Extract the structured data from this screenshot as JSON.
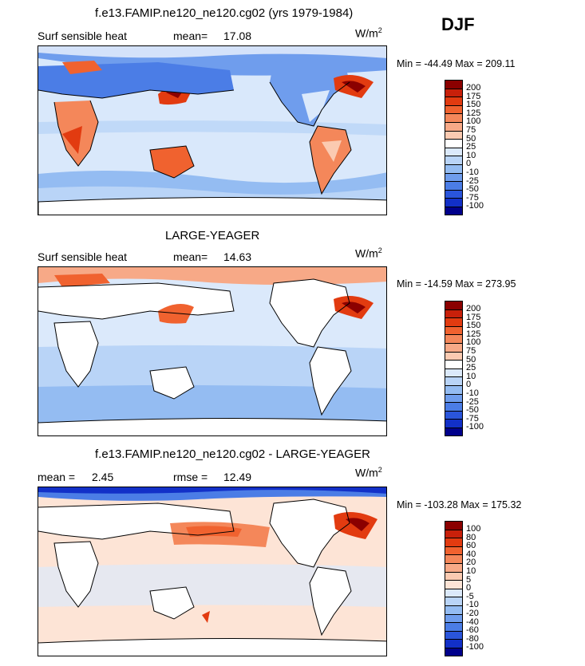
{
  "header": {
    "season": "DJF",
    "units_base": "W/m",
    "units_exp": "2"
  },
  "panels": [
    {
      "title": "f.e13.FAMIP.ne120_ne120.cg02 (yrs 1979-1984)",
      "left_label": "Surf sensible heat",
      "stat1": "mean=",
      "stat1_value": "17.08",
      "stat2": "",
      "stat2_value": "",
      "minmax": "Min = -44.49 Max = 209.11",
      "variant": "model"
    },
    {
      "title": "LARGE-YEAGER",
      "left_label": "Surf sensible heat",
      "stat1": "mean=",
      "stat1_value": "14.63",
      "stat2": "",
      "stat2_value": "",
      "minmax": "Min = -14.59 Max = 273.95",
      "variant": "obs"
    },
    {
      "title": "f.e13.FAMIP.ne120_ne120.cg02 - LARGE-YEAGER",
      "left_label": "mean =",
      "stat1": "2.45",
      "stat1_value": "",
      "stat2": "rmse =",
      "stat2_value": "12.49",
      "minmax": "Min = -103.28 Max = 175.32",
      "variant": "diff"
    }
  ],
  "colorbars": [
    {
      "labels": [
        "200",
        "175",
        "150",
        "125",
        "100",
        "75",
        "50",
        "25",
        "10",
        "0",
        "-10",
        "-25",
        "-50",
        "-75",
        "-100"
      ],
      "colors": [
        "#8b0000",
        "#c8200a",
        "#e23b10",
        "#f0622f",
        "#f4875a",
        "#f7a987",
        "#fbcab1",
        "#ffffff",
        "#dbe9fb",
        "#b9d4f7",
        "#94bcf2",
        "#6f9ded",
        "#4b7de6",
        "#2a55db",
        "#1230c8",
        "#00008b"
      ]
    },
    {
      "labels": [
        "200",
        "175",
        "150",
        "125",
        "100",
        "75",
        "50",
        "25",
        "10",
        "0",
        "-10",
        "-25",
        "-50",
        "-75",
        "-100"
      ],
      "colors": [
        "#8b0000",
        "#c8200a",
        "#e23b10",
        "#f0622f",
        "#f4875a",
        "#f7a987",
        "#fbcab1",
        "#ffffff",
        "#dbe9fb",
        "#b9d4f7",
        "#94bcf2",
        "#6f9ded",
        "#4b7de6",
        "#2a55db",
        "#1230c8",
        "#00008b"
      ]
    },
    {
      "labels": [
        "100",
        "80",
        "60",
        "40",
        "20",
        "10",
        "5",
        "0",
        "-5",
        "-10",
        "-20",
        "-40",
        "-60",
        "-80",
        "-100"
      ],
      "colors": [
        "#8b0000",
        "#c8200a",
        "#e23b10",
        "#f0622f",
        "#f4875a",
        "#f7a987",
        "#fbcab1",
        "#fde4d6",
        "#dbe9fb",
        "#b9d4f7",
        "#94bcf2",
        "#6f9ded",
        "#4b7de6",
        "#2a55db",
        "#1230c8",
        "#00008b"
      ]
    }
  ],
  "chart_data": [
    {
      "type": "heatmap",
      "title": "f.e13.FAMIP.ne120_ne120.cg02 (yrs 1979-1984)",
      "variable": "Surf sensible heat",
      "units": "W/m2",
      "season": "DJF",
      "mean": 17.08,
      "min": -44.49,
      "max": 209.11,
      "contour_levels": [
        -100,
        -75,
        -50,
        -25,
        -10,
        0,
        10,
        25,
        50,
        75,
        100,
        125,
        150,
        175,
        200
      ]
    },
    {
      "type": "heatmap",
      "title": "LARGE-YEAGER",
      "variable": "Surf sensible heat",
      "units": "W/m2",
      "season": "DJF",
      "mean": 14.63,
      "min": -14.59,
      "max": 273.95,
      "contour_levels": [
        -100,
        -75,
        -50,
        -25,
        -10,
        0,
        10,
        25,
        50,
        75,
        100,
        125,
        150,
        175,
        200
      ]
    },
    {
      "type": "heatmap",
      "title": "f.e13.FAMIP.ne120_ne120.cg02 - LARGE-YEAGER",
      "units": "W/m2",
      "season": "DJF",
      "mean": 2.45,
      "rmse": 12.49,
      "min": -103.28,
      "max": 175.32,
      "contour_levels": [
        -100,
        -80,
        -60,
        -40,
        -20,
        -10,
        -5,
        0,
        5,
        10,
        20,
        40,
        60,
        80,
        100
      ]
    }
  ]
}
